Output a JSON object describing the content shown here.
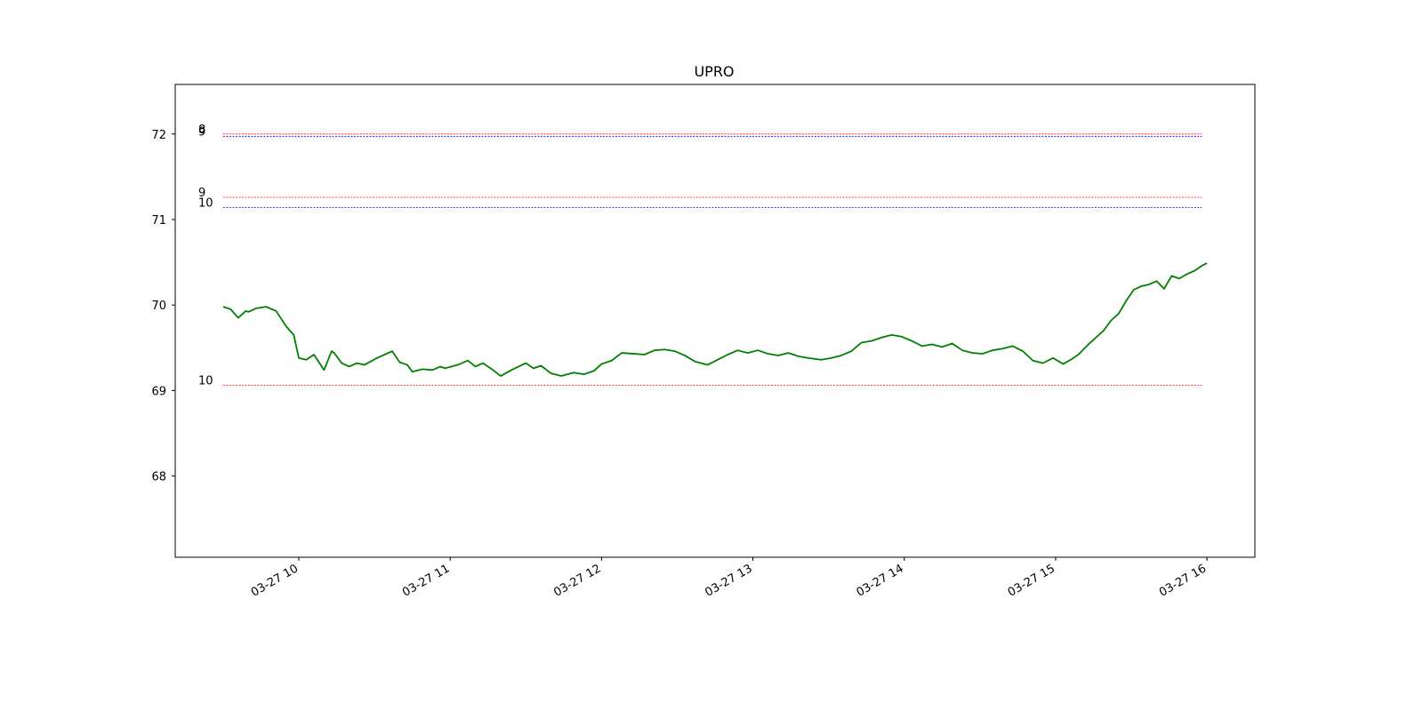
{
  "chart_data": {
    "type": "line",
    "title": "UPRO",
    "xlabel": "",
    "ylabel": "",
    "grid": false,
    "xlim": [
      "03-27 09:11",
      "03-27 16:19"
    ],
    "ylim": [
      67.05,
      72.58
    ],
    "x_ticks": [
      {
        "time": "03-27 10:00",
        "label": "03-27 10"
      },
      {
        "time": "03-27 11:00",
        "label": "03-27 11"
      },
      {
        "time": "03-27 12:00",
        "label": "03-27 12"
      },
      {
        "time": "03-27 13:00",
        "label": "03-27 13"
      },
      {
        "time": "03-27 14:00",
        "label": "03-27 14"
      },
      {
        "time": "03-27 15:00",
        "label": "03-27 15"
      },
      {
        "time": "03-27 16:00",
        "label": "03-27 16"
      }
    ],
    "y_ticks": [
      {
        "value": 68,
        "label": "68"
      },
      {
        "value": 69,
        "label": "69"
      },
      {
        "value": 70,
        "label": "70"
      },
      {
        "value": 71,
        "label": "71"
      },
      {
        "value": 72,
        "label": "72"
      }
    ],
    "levels": [
      {
        "value": 72.0,
        "label": "8",
        "color": "#ff0000",
        "start": "03-27 09:30",
        "end": "03-27 15:58"
      },
      {
        "value": 71.97,
        "label": "9",
        "color": "#0000ff",
        "start": "03-27 09:30",
        "end": "03-27 15:58"
      },
      {
        "value": 71.26,
        "label": "9",
        "color": "#ff0000",
        "start": "03-27 09:30",
        "end": "03-27 15:58"
      },
      {
        "value": 71.14,
        "label": "10",
        "color": "#0000ff",
        "start": "03-27 09:30",
        "end": "03-27 15:58"
      },
      {
        "value": 69.06,
        "label": "10",
        "color": "#ff0000",
        "start": "03-27 09:30",
        "end": "03-27 15:58"
      }
    ],
    "series": [
      {
        "color": "#008000",
        "x": [
          "03-27 09:30",
          "03-27 09:33",
          "03-27 09:36",
          "03-27 09:39",
          "03-27 09:40",
          "03-27 09:43",
          "03-27 09:47",
          "03-27 09:51",
          "03-27 09:55",
          "03-27 09:58",
          "03-27 10:00",
          "03-27 10:03",
          "03-27 10:06",
          "03-27 10:10",
          "03-27 10:13",
          "03-27 10:14",
          "03-27 10:17",
          "03-27 10:20",
          "03-27 10:23",
          "03-27 10:26",
          "03-27 10:31",
          "03-27 10:34",
          "03-27 10:37",
          "03-27 10:40",
          "03-27 10:43",
          "03-27 10:45",
          "03-27 10:49",
          "03-27 10:53",
          "03-27 10:56",
          "03-27 10:58",
          "03-27 11:03",
          "03-27 11:07",
          "03-27 11:10",
          "03-27 11:13",
          "03-27 11:17",
          "03-27 11:20",
          "03-27 11:25",
          "03-27 11:30",
          "03-27 11:33",
          "03-27 11:36",
          "03-27 11:40",
          "03-27 11:44",
          "03-27 11:49",
          "03-27 11:53",
          "03-27 11:57",
          "03-27 12:00",
          "03-27 12:04",
          "03-27 12:08",
          "03-27 12:13",
          "03-27 12:17",
          "03-27 12:21",
          "03-27 12:25",
          "03-27 12:29",
          "03-27 12:33",
          "03-27 12:37",
          "03-27 12:42",
          "03-27 12:46",
          "03-27 12:50",
          "03-27 12:54",
          "03-27 12:58",
          "03-27 13:02",
          "03-27 13:06",
          "03-27 13:10",
          "03-27 13:14",
          "03-27 13:18",
          "03-27 13:22",
          "03-27 13:27",
          "03-27 13:31",
          "03-27 13:35",
          "03-27 13:39",
          "03-27 13:43",
          "03-27 13:47",
          "03-27 13:51",
          "03-27 13:55",
          "03-27 13:59",
          "03-27 14:03",
          "03-27 14:07",
          "03-27 14:11",
          "03-27 14:15",
          "03-27 14:19",
          "03-27 14:23",
          "03-27 14:27",
          "03-27 14:31",
          "03-27 14:35",
          "03-27 14:39",
          "03-27 14:43",
          "03-27 14:47",
          "03-27 14:51",
          "03-27 14:55",
          "03-27 14:59",
          "03-27 15:03",
          "03-27 15:06",
          "03-27 15:09",
          "03-27 15:13",
          "03-27 15:16",
          "03-27 15:19",
          "03-27 15:22",
          "03-27 15:25",
          "03-27 15:28",
          "03-27 15:31",
          "03-27 15:34",
          "03-27 15:37",
          "03-27 15:40",
          "03-27 15:43",
          "03-27 15:46",
          "03-27 15:49",
          "03-27 15:52",
          "03-27 15:55",
          "03-27 15:58",
          "03-27 16:00"
        ],
        "values": [
          69.98,
          69.95,
          69.85,
          69.93,
          69.92,
          69.96,
          69.98,
          69.93,
          69.75,
          69.65,
          69.38,
          69.36,
          69.42,
          69.24,
          69.46,
          69.44,
          69.32,
          69.28,
          69.32,
          69.3,
          69.38,
          69.42,
          69.46,
          69.33,
          69.3,
          69.22,
          69.25,
          69.24,
          69.28,
          69.26,
          69.3,
          69.35,
          69.28,
          69.32,
          69.24,
          69.17,
          69.25,
          69.32,
          69.26,
          69.29,
          69.2,
          69.17,
          69.21,
          69.19,
          69.23,
          69.31,
          69.35,
          69.44,
          69.43,
          69.42,
          69.47,
          69.48,
          69.46,
          69.41,
          69.34,
          69.3,
          69.36,
          69.42,
          69.47,
          69.44,
          69.47,
          69.43,
          69.41,
          69.44,
          69.4,
          69.38,
          69.36,
          69.38,
          69.41,
          69.46,
          69.56,
          69.58,
          69.62,
          69.65,
          69.63,
          69.58,
          69.52,
          69.54,
          69.51,
          69.55,
          69.47,
          69.44,
          69.43,
          69.47,
          69.49,
          69.52,
          69.46,
          69.35,
          69.32,
          69.38,
          69.31,
          69.36,
          69.42,
          69.54,
          69.62,
          69.7,
          69.82,
          69.9,
          70.05,
          70.18,
          70.22,
          70.24,
          70.28,
          70.19,
          70.34,
          70.31,
          70.36,
          70.4,
          70.46,
          70.49
        ]
      }
    ]
  }
}
